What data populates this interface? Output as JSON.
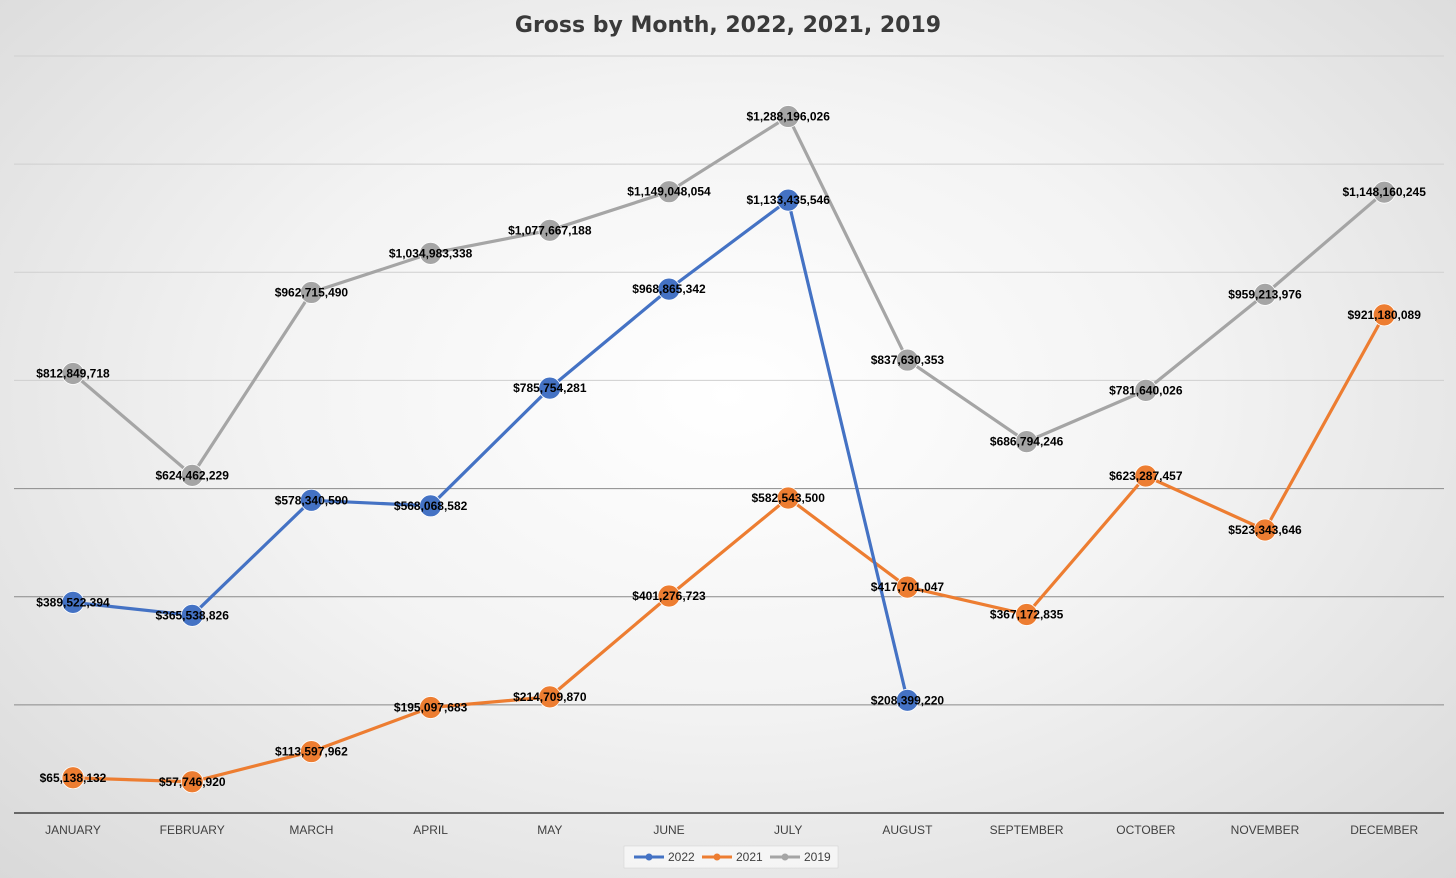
{
  "chart_data": {
    "type": "line",
    "title": "Gross by Month, 2022, 2021, 2019",
    "xlabel": "",
    "ylabel": "",
    "categories": [
      "JANUARY",
      "FEBRUARY",
      "MARCH",
      "APRIL",
      "MAY",
      "JUNE",
      "JULY",
      "AUGUST",
      "SEPTEMBER",
      "OCTOBER",
      "NOVEMBER",
      "DECEMBER"
    ],
    "ylim": [
      0,
      1400000000
    ],
    "grid": true,
    "legend_position": "bottom-center",
    "series": [
      {
        "name": "2022",
        "color": "#4472C4",
        "values": [
          389522394,
          365538826,
          578340590,
          568068582,
          785754281,
          968865342,
          1133435546,
          208399220,
          null,
          null,
          null,
          null
        ],
        "labels": [
          "$389,522,394",
          "$365,538,826",
          "$578,340,590",
          "$568,068,582",
          "$785,754,281",
          "$968,865,342",
          "$1,133,435,546",
          "$208,399,220",
          "",
          "",
          "",
          ""
        ]
      },
      {
        "name": "2021",
        "color": "#ED7D31",
        "values": [
          65138132,
          57746920,
          113597962,
          195097683,
          214709870,
          401276723,
          582543500,
          417701047,
          367172835,
          623287457,
          523343646,
          921180089
        ],
        "labels": [
          "$65,138,132",
          "$57,746,920",
          "$113,597,962",
          "$195,097,683",
          "$214,709,870",
          "$401,276,723",
          "$582,543,500",
          "$417,701,047",
          "$367,172,835",
          "$623,287,457",
          "$523,343,646",
          "$921,180,089"
        ]
      },
      {
        "name": "2019",
        "color": "#A5A5A5",
        "values": [
          812849718,
          624462229,
          962715490,
          1034983338,
          1077667188,
          1149048054,
          1288196026,
          837630353,
          686794246,
          781640026,
          959213976,
          1148160245
        ],
        "labels": [
          "$812,849,718",
          "$624,462,229",
          "$962,715,490",
          "$1,034,983,338",
          "$1,077,667,188",
          "$1,149,048,054",
          "$1,288,196,026",
          "$837,630,353",
          "$686,794,246",
          "$781,640,026",
          "$959,213,976",
          "$1,148,160,245"
        ]
      }
    ]
  }
}
